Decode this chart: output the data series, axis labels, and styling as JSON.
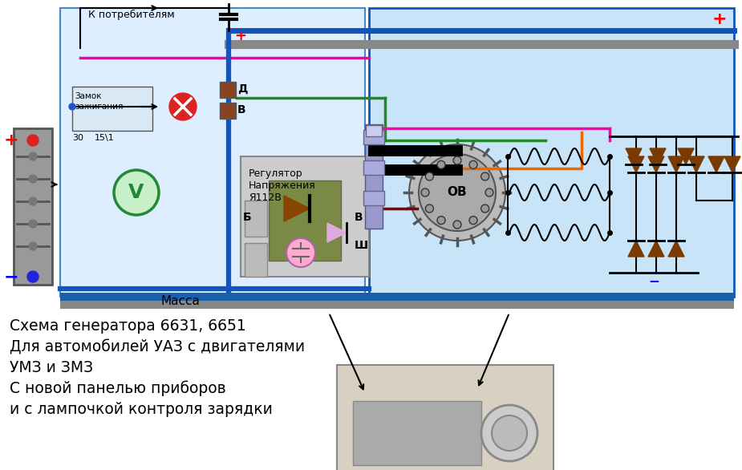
{
  "bg_color": "#ffffff",
  "light_blue": "#c8e4f8",
  "blue_border": "#1a6fc4",
  "text_lines": [
    "Схема генератора 6631, 6651",
    "Для автомобилей УАЗ с двигателями",
    "УМЗ и ЗМЗ",
    "С новой панелью приборов",
    "и с лампочкой контроля зарядки"
  ],
  "k_potrebitelyam": "К потребителям",
  "zamok_text1": "Замок",
  "zamok_text2": "зажигания",
  "regulator_text": "Регулятор\nНапряжения\nЯ112В",
  "massa_text": "Масса",
  "ov_text": "ОВ"
}
